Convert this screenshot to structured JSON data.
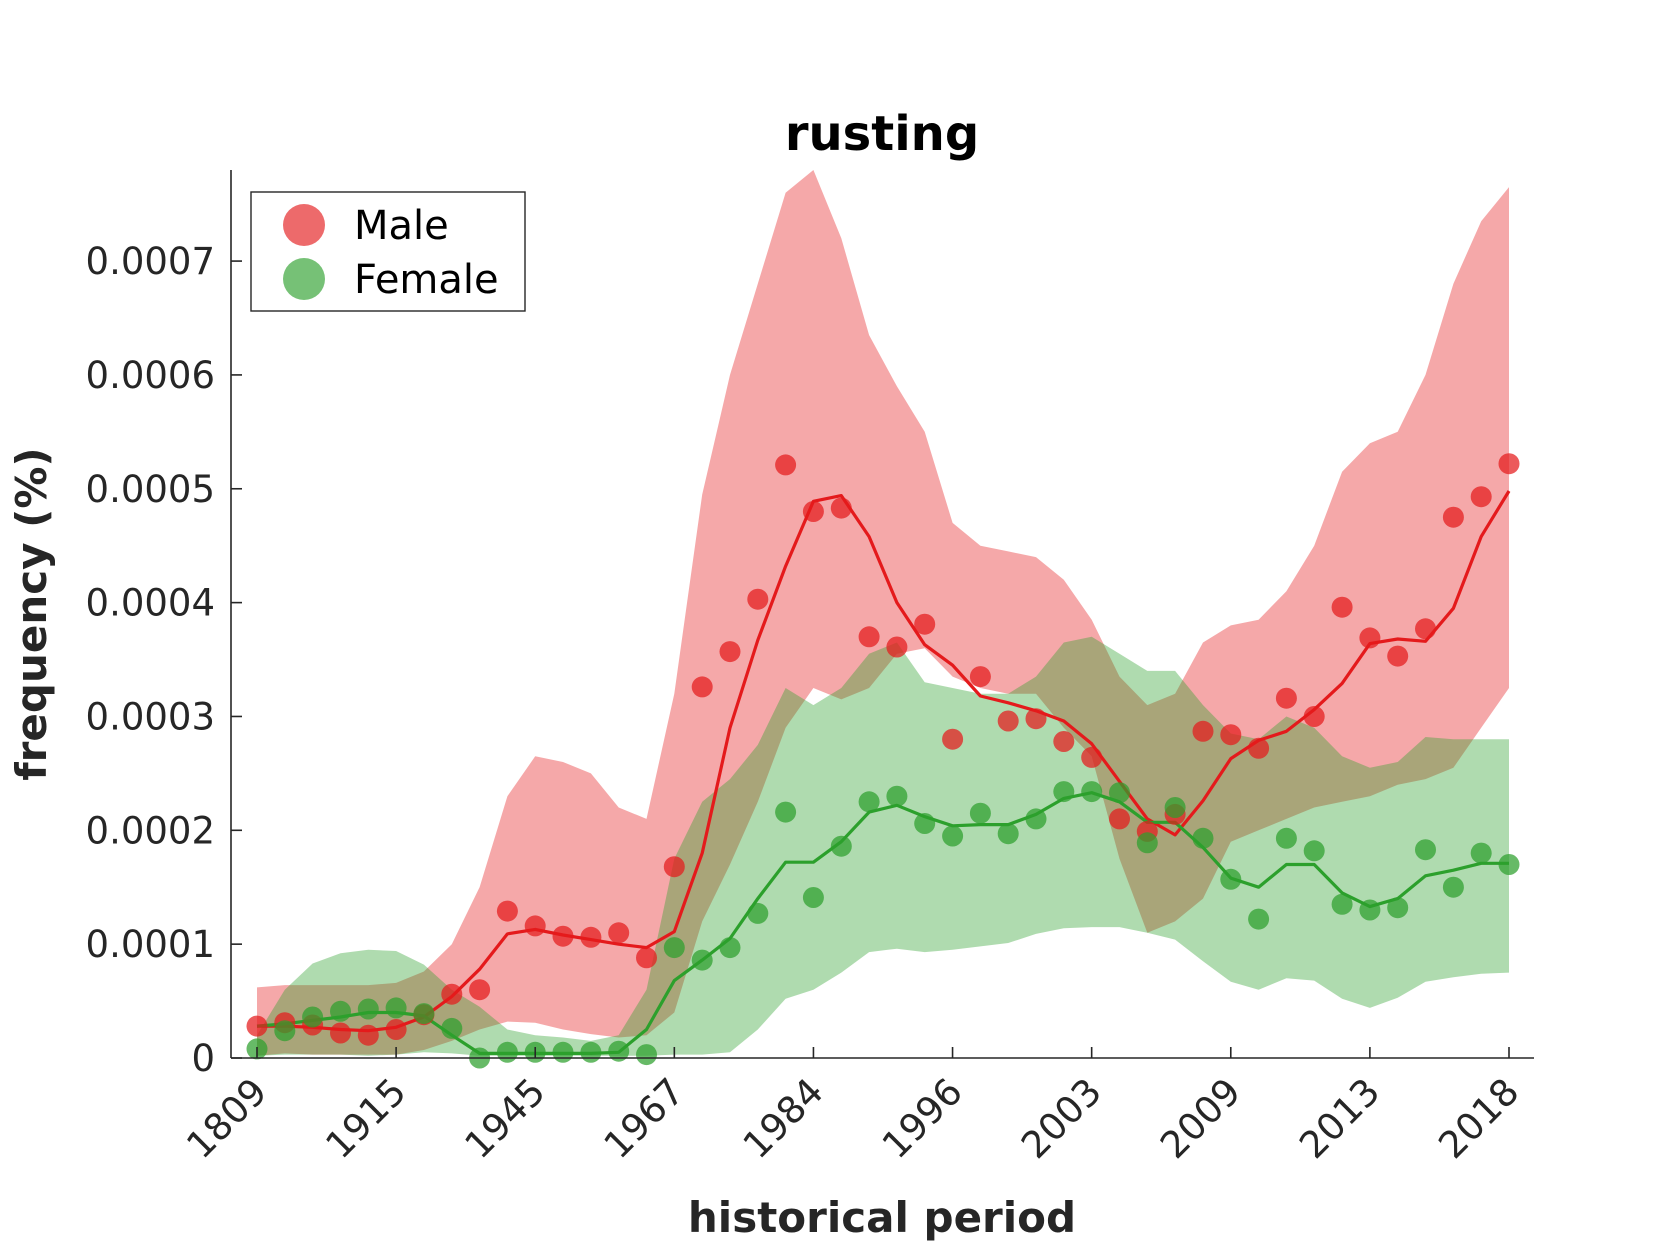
{
  "chart_data": {
    "type": "line",
    "title": "rusting",
    "xlabel": "historical period",
    "ylabel": "frequency (%)",
    "ylim": [
      0,
      0.00078
    ],
    "yticks": [
      0,
      0.0001,
      0.0002,
      0.0003,
      0.0004,
      0.0005,
      0.0006,
      0.0007
    ],
    "ytick_labels": [
      "0",
      "0.0001",
      "0.0002",
      "0.0003",
      "0.0004",
      "0.0005",
      "0.0006",
      "0.0007"
    ],
    "xtick_labels": [
      "1809",
      "1915",
      "1945",
      "1967",
      "1984",
      "1996",
      "2003",
      "2009",
      "2013",
      "2018"
    ],
    "xtick_positions": [
      0,
      5,
      10,
      15,
      20,
      25,
      30,
      35,
      40,
      45
    ],
    "x_index_range": [
      0,
      45
    ],
    "grid": false,
    "legend_position": "top-left",
    "series": [
      {
        "name": "Male",
        "color": "#e41a1c",
        "points": [
          2.8e-05,
          3.1e-05,
          2.9e-05,
          2.2e-05,
          2e-05,
          2.5e-05,
          3.8e-05,
          5.6e-05,
          6e-05,
          0.000129,
          0.000116,
          0.000107,
          0.000106,
          0.00011,
          8.8e-05,
          0.000168,
          0.000326,
          0.000357,
          0.000403,
          0.000521,
          0.00048,
          0.000483,
          0.00037,
          0.000361,
          0.000381,
          0.00028,
          0.000335,
          0.000296,
          0.000298,
          0.000278,
          0.000264,
          0.00021,
          0.000199,
          0.000214,
          0.000287,
          0.000284,
          0.000272,
          0.000316,
          0.0003,
          0.000396,
          0.000369,
          0.000353,
          0.000377,
          0.000475,
          0.000493,
          0.000522
        ],
        "trend": [
          2.8e-05,
          2.8e-05,
          2.7e-05,
          2.5e-05,
          2.4e-05,
          2.7e-05,
          3.6e-05,
          5.4e-05,
          7.8e-05,
          0.000109,
          0.000113,
          0.000108,
          0.000104,
          0.0001,
          9.7e-05,
          0.000111,
          0.00018,
          0.00029,
          0.000367,
          0.000432,
          0.000489,
          0.000494,
          0.000458,
          0.0004,
          0.000363,
          0.000345,
          0.000318,
          0.000312,
          0.000305,
          0.000296,
          0.000276,
          0.000243,
          0.00021,
          0.000196,
          0.000226,
          0.000263,
          0.000279,
          0.000287,
          0.000306,
          0.000329,
          0.000364,
          0.000368,
          0.000366,
          0.000395,
          0.000458,
          0.000498
        ],
        "band_lower": [
          2e-06,
          4e-06,
          3e-06,
          3e-06,
          3e-06,
          3e-06,
          7e-06,
          1.5e-05,
          2.5e-05,
          3.2e-05,
          3.1e-05,
          2.5e-05,
          2.1e-05,
          1.8e-05,
          2e-05,
          4e-05,
          0.00012,
          0.00017,
          0.000225,
          0.00029,
          0.000325,
          0.000315,
          0.000325,
          0.000355,
          0.00036,
          0.000335,
          0.000325,
          0.00032,
          0.00032,
          0.00029,
          0.000265,
          0.000175,
          0.00011,
          0.00012,
          0.00014,
          0.00019,
          0.0002,
          0.00021,
          0.00022,
          0.000225,
          0.00023,
          0.00024,
          0.000245,
          0.000255,
          0.00029,
          0.000325
        ],
        "band_upper": [
          6.2e-05,
          6.4e-05,
          6.4e-05,
          6.4e-05,
          6.4e-05,
          6.6e-05,
          7.6e-05,
          0.0001,
          0.00015,
          0.00023,
          0.000265,
          0.00026,
          0.00025,
          0.00022,
          0.00021,
          0.00032,
          0.000495,
          0.0006,
          0.00068,
          0.00076,
          0.00078,
          0.00072,
          0.000635,
          0.00059,
          0.00055,
          0.00047,
          0.00045,
          0.000445,
          0.00044,
          0.00042,
          0.000385,
          0.000335,
          0.00031,
          0.00032,
          0.000365,
          0.00038,
          0.000385,
          0.00041,
          0.00045,
          0.000515,
          0.00054,
          0.00055,
          0.0006,
          0.00068,
          0.000735,
          0.000765
        ]
      },
      {
        "name": "Female",
        "color": "#2ca02c",
        "points": [
          8e-06,
          2.4e-05,
          3.6e-05,
          4.1e-05,
          4.3e-05,
          4.4e-05,
          3.9e-05,
          2.6e-05,
          0.0,
          5e-06,
          5e-06,
          5e-06,
          5e-06,
          6e-06,
          3e-06,
          9.7e-05,
          8.6e-05,
          9.7e-05,
          0.000127,
          0.000216,
          0.000141,
          0.000186,
          0.000225,
          0.00023,
          0.000206,
          0.000195,
          0.000215,
          0.000197,
          0.00021,
          0.000234,
          0.000234,
          0.000233,
          0.000189,
          0.00022,
          0.000193,
          0.000157,
          0.000122,
          0.000193,
          0.000182,
          0.000135,
          0.00013,
          0.000132,
          0.000183,
          0.00015,
          0.00018,
          0.00017
        ],
        "trend": [
          2.8e-05,
          3e-05,
          3.3e-05,
          3.6e-05,
          4e-05,
          4e-05,
          3.7e-05,
          2e-05,
          4e-06,
          4e-06,
          4e-06,
          4e-06,
          4e-06,
          5e-06,
          2.5e-05,
          6.8e-05,
          8.6e-05,
          0.000105,
          0.00014,
          0.000172,
          0.000172,
          0.00019,
          0.000216,
          0.000222,
          0.000212,
          0.000204,
          0.000205,
          0.000205,
          0.000214,
          0.000228,
          0.000233,
          0.000225,
          0.000207,
          0.000207,
          0.000185,
          0.000158,
          0.00015,
          0.00017,
          0.00017,
          0.000145,
          0.000133,
          0.00014,
          0.00016,
          0.000165,
          0.000171,
          0.000171
        ],
        "band_lower": [
          2e-06,
          3e-06,
          3e-06,
          3e-06,
          2e-06,
          3e-06,
          5e-06,
          4e-06,
          2e-06,
          2e-06,
          2e-06,
          2e-06,
          2e-06,
          2e-06,
          2e-06,
          3e-06,
          3e-06,
          5e-06,
          2.5e-05,
          5.2e-05,
          6e-05,
          7.5e-05,
          9.3e-05,
          9.6e-05,
          9.3e-05,
          9.5e-05,
          9.8e-05,
          0.000101,
          0.000109,
          0.000114,
          0.000115,
          0.000115,
          0.00011,
          0.000104,
          8.5e-05,
          6.7e-05,
          6e-05,
          7e-05,
          6.8e-05,
          5.2e-05,
          4.4e-05,
          5.3e-05,
          6.7e-05,
          7.1e-05,
          7.4e-05,
          7.5e-05
        ],
        "band_upper": [
          2e-05,
          6e-05,
          8.3e-05,
          9.2e-05,
          9.5e-05,
          9.4e-05,
          8.2e-05,
          6e-05,
          4.5e-05,
          2.5e-05,
          2e-05,
          1.8e-05,
          1.5e-05,
          2e-05,
          6e-05,
          0.000175,
          0.000225,
          0.000245,
          0.000275,
          0.000325,
          0.00031,
          0.000325,
          0.000355,
          0.000365,
          0.00033,
          0.000325,
          0.00032,
          0.00032,
          0.000335,
          0.000365,
          0.00037,
          0.000355,
          0.00034,
          0.00034,
          0.00031,
          0.000285,
          0.00028,
          0.0003,
          0.00029,
          0.000265,
          0.000255,
          0.00026,
          0.000282,
          0.00028,
          0.00028,
          0.00028
        ]
      }
    ]
  }
}
